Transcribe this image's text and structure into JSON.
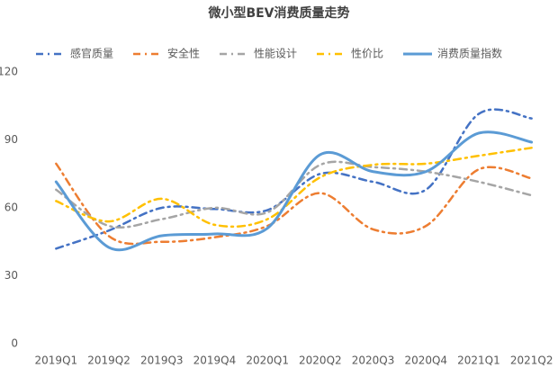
{
  "chart_data": {
    "type": "line",
    "title": "微小型BEV消费质量走势",
    "categories": [
      "2019Q1",
      "2019Q2",
      "2019Q3",
      "2019Q4",
      "2020Q1",
      "2020Q2",
      "2020Q3",
      "2020Q4",
      "2021Q1",
      "2021Q2"
    ],
    "series": [
      {
        "name": "感官质量",
        "color": "#4472c4",
        "style": "dashdot",
        "values": [
          42,
          50,
          60,
          59.5,
          59,
          75,
          71.5,
          68,
          101.5,
          99.5
        ]
      },
      {
        "name": "安全性",
        "color": "#ed7d31",
        "style": "dashdot",
        "values": [
          79.5,
          47.5,
          45,
          47,
          52,
          66.5,
          50.5,
          52,
          77,
          73
        ]
      },
      {
        "name": "性能设计",
        "color": "#a5a5a5",
        "style": "dashdot",
        "values": [
          68,
          52,
          55,
          60,
          58,
          79,
          78,
          76,
          71.5,
          65.5
        ]
      },
      {
        "name": "性价比",
        "color": "#ffc000",
        "style": "dashdot",
        "values": [
          63,
          54,
          64,
          52.5,
          55,
          73.5,
          79,
          79.5,
          83,
          86.5
        ]
      },
      {
        "name": "消费质量指数",
        "color": "#5b9bd5",
        "style": "solid",
        "values": [
          71.5,
          42.5,
          47.7,
          48.5,
          51,
          83.5,
          76,
          76,
          93,
          89
        ]
      }
    ],
    "ylim": [
      0,
      120
    ],
    "yticks": [
      0,
      30,
      60,
      90,
      120
    ],
    "grid": false,
    "smooth": true,
    "legend": "top"
  }
}
